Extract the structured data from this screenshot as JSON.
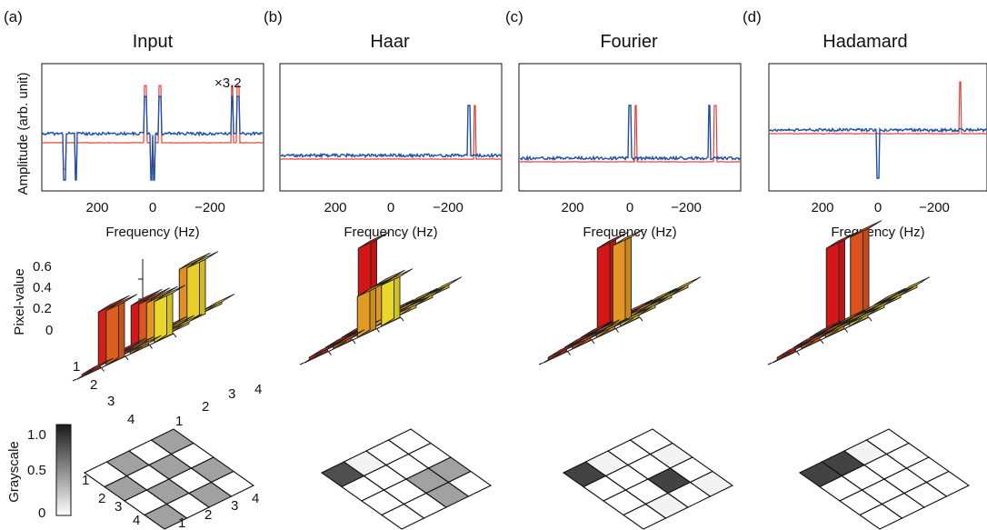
{
  "panel_letters": [
    "(a)",
    "(b)",
    "(c)",
    "(d)"
  ],
  "panel_titles": [
    "Input",
    "Haar",
    "Fourier",
    "Hadamard"
  ],
  "spectrum_ylabel": "Amplitude (arb. unit)",
  "spectrum_xlabel": "Frequency (Hz)",
  "spectrum_xticks": [
    "200",
    "0",
    "−200"
  ],
  "scale_note": "×3.2",
  "bars_zlabel": "Pixel-value",
  "bars_zticks": [
    "0.6",
    "0.4",
    "0.2",
    "0"
  ],
  "grid_ticks": [
    "1",
    "2",
    "3",
    "4"
  ],
  "gray_label": "Grayscale",
  "gray_ticks": [
    "1.0",
    "0.5",
    "0"
  ],
  "colors": {
    "red_trace": "#e8302a",
    "blue_trace": "#1f4fa8",
    "bar_low": "#e81818",
    "bar_high": "#ffff30"
  },
  "chart_data": [
    {
      "type": "line",
      "panel": "(a)",
      "title": "Input",
      "xlabel": "Frequency (Hz)",
      "ylabel": "Amplitude (arb. unit)",
      "xlim": [
        370,
        -370
      ],
      "annotation": "×3.2",
      "series": [
        {
          "x": [
            310,
            270,
            25,
            5,
            -5,
            -25,
            -280,
            -300
          ],
          "values": [
            -1,
            -1,
            1,
            -1,
            -1,
            1,
            1,
            1
          ]
        },
        {
          "x": [
            310,
            270,
            25,
            5,
            -5,
            -25,
            -280,
            -300
          ],
          "values": [
            -1,
            -1,
            1,
            -1,
            -1,
            1,
            1,
            1
          ]
        }
      ]
    },
    {
      "type": "line",
      "panel": "(b)",
      "title": "Haar",
      "xlabel": "Frequency (Hz)",
      "xlim": [
        370,
        -370
      ],
      "series": [
        {
          "x": [
            -295
          ],
          "values": [
            1
          ]
        },
        {
          "x": [
            -275
          ],
          "values": [
            1
          ]
        }
      ]
    },
    {
      "type": "line",
      "panel": "(c)",
      "title": "Fourier",
      "xlabel": "Frequency (Hz)",
      "xlim": [
        370,
        -370
      ],
      "series": [
        {
          "x": [
            -20,
            -300
          ],
          "values": [
            1,
            1
          ]
        },
        {
          "x": [
            0,
            -280
          ],
          "values": [
            1,
            1
          ]
        }
      ]
    },
    {
      "type": "line",
      "panel": "(d)",
      "title": "Hadamard",
      "xlabel": "Frequency (Hz)",
      "xlim": [
        370,
        -370
      ],
      "series": [
        {
          "x": [
            -290
          ],
          "values": [
            1
          ]
        },
        {
          "x": [
            0
          ],
          "values": [
            -1
          ]
        }
      ]
    },
    {
      "type": "bar",
      "panel": "(a)",
      "zlabel": "Pixel-value",
      "zlim": [
        0,
        0.6
      ],
      "values": [
        [
          0.3,
          0,
          0.4,
          0
        ],
        [
          0,
          0.3,
          0,
          0.4
        ],
        [
          0.4,
          0,
          0.3,
          0
        ],
        [
          0,
          0.4,
          0,
          0.3
        ]
      ]
    },
    {
      "type": "bar",
      "panel": "(b)",
      "values": [
        [
          0.6,
          0.02,
          0.02,
          0.02
        ],
        [
          0.02,
          0.02,
          0.02,
          0.02
        ],
        [
          0.02,
          0.02,
          0.3,
          0.02
        ],
        [
          0.02,
          0.02,
          0.3,
          0.3
        ]
      ]
    },
    {
      "type": "bar",
      "panel": "(c)",
      "values": [
        [
          0.6,
          0.02,
          0.02,
          0.02
        ],
        [
          0.02,
          0.02,
          0.02,
          0.02
        ],
        [
          0.02,
          0.02,
          0.6,
          0.02
        ],
        [
          0.02,
          0.02,
          0.02,
          0.02
        ]
      ]
    },
    {
      "type": "bar",
      "panel": "(d)",
      "values": [
        [
          0.6,
          0.6,
          0.02,
          0.02
        ],
        [
          0.02,
          0.02,
          0.02,
          0.02
        ],
        [
          0.02,
          0.02,
          0.02,
          0.02
        ],
        [
          0.02,
          0.02,
          0.02,
          0.02
        ]
      ]
    },
    {
      "type": "heatmap",
      "panel": "(a)",
      "label": "Grayscale",
      "zlim": [
        0,
        1
      ],
      "values": [
        [
          0,
          0.4,
          0,
          0.4
        ],
        [
          0.4,
          0,
          0.4,
          0
        ],
        [
          0,
          0.4,
          0,
          0.4
        ],
        [
          0.4,
          0,
          0.4,
          0
        ]
      ]
    },
    {
      "type": "heatmap",
      "panel": "(b)",
      "values": [
        [
          0.75,
          0.05,
          0,
          0
        ],
        [
          0,
          0,
          0,
          0
        ],
        [
          0,
          0,
          0.4,
          0.4
        ],
        [
          0,
          0,
          0.4,
          0
        ]
      ]
    },
    {
      "type": "heatmap",
      "panel": "(c)",
      "values": [
        [
          0.8,
          0.05,
          0,
          0
        ],
        [
          0,
          0,
          0,
          0.05
        ],
        [
          0,
          0,
          0.8,
          0
        ],
        [
          0,
          0.05,
          0,
          0.05
        ]
      ]
    },
    {
      "type": "heatmap",
      "panel": "(d)",
      "values": [
        [
          0.8,
          0.8,
          0.05,
          0
        ],
        [
          0,
          0,
          0,
          0
        ],
        [
          0,
          0,
          0,
          0
        ],
        [
          0,
          0,
          0,
          0
        ]
      ]
    }
  ]
}
